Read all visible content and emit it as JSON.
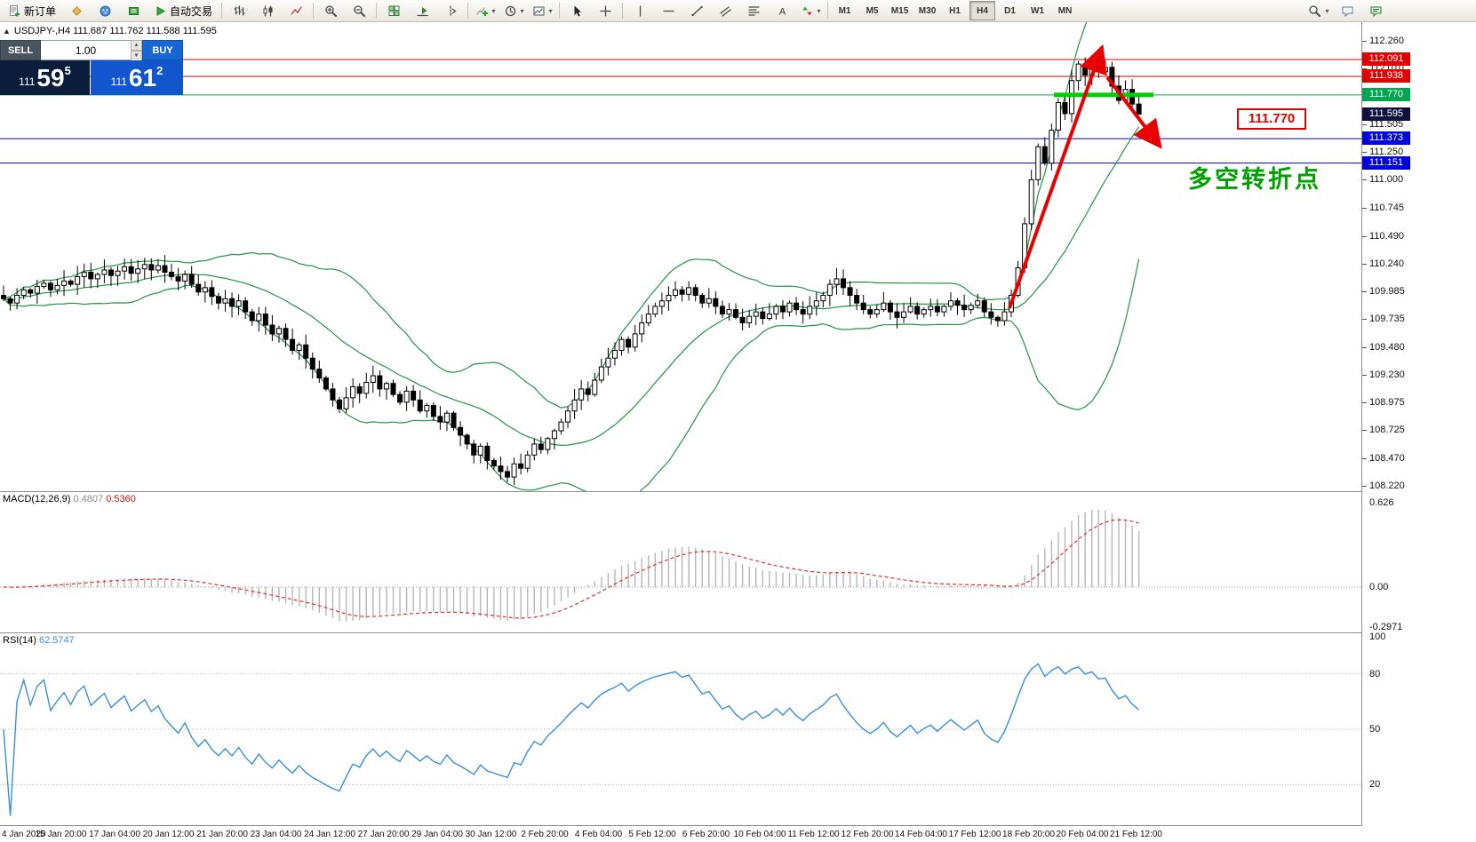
{
  "toolbar": {
    "new_order": "新订单",
    "autotrading": "自动交易",
    "timeframes": [
      "M1",
      "M5",
      "M15",
      "M30",
      "H1",
      "H4",
      "D1",
      "W1",
      "MN"
    ],
    "active_timeframe": "H4",
    "caret": "▾"
  },
  "trade_panel": {
    "sell_label": "SELL",
    "buy_label": "BUY",
    "volume": "1.00",
    "sell_price_prefix": "111",
    "sell_price_big": "59",
    "sell_price_sup": "5",
    "buy_price_prefix": "111",
    "buy_price_big": "61",
    "buy_price_sup": "2",
    "spin_up": "▲",
    "spin_down": "▼"
  },
  "chart_header": {
    "collapse_icon": "▲",
    "title": "USDJPY-,H4  111.687 111.762 111.588 111.595"
  },
  "chart_data": {
    "type": "candlestick",
    "symbol": "USDJPY-",
    "period": "H4",
    "ohlc": {
      "open": 111.687,
      "high": 111.762,
      "low": 111.588,
      "close": 111.595
    },
    "price_axis_range": [
      108.18,
      112.43
    ],
    "closes": [
      109.92,
      109.88,
      109.95,
      110.0,
      109.97,
      110.03,
      110.06,
      110.0,
      110.04,
      110.08,
      110.05,
      110.12,
      110.16,
      110.1,
      110.14,
      110.18,
      110.13,
      110.17,
      110.21,
      110.15,
      110.19,
      110.23,
      110.18,
      110.22,
      110.16,
      110.12,
      110.08,
      110.14,
      110.05,
      109.98,
      110.02,
      109.94,
      109.88,
      109.92,
      109.85,
      109.9,
      109.8,
      109.72,
      109.78,
      109.68,
      109.6,
      109.65,
      109.55,
      109.45,
      109.5,
      109.38,
      109.28,
      109.2,
      109.1,
      109.0,
      108.92,
      109.02,
      109.12,
      109.06,
      109.16,
      109.22,
      109.1,
      109.15,
      109.05,
      108.98,
      109.08,
      109.0,
      108.9,
      108.95,
      108.85,
      108.8,
      108.88,
      108.75,
      108.68,
      108.6,
      108.5,
      108.58,
      108.45,
      108.4,
      108.35,
      108.3,
      108.42,
      108.38,
      108.5,
      108.6,
      108.55,
      108.65,
      108.72,
      108.8,
      108.9,
      109.0,
      109.1,
      109.05,
      109.18,
      109.3,
      109.38,
      109.45,
      109.55,
      109.48,
      109.6,
      109.7,
      109.78,
      109.85,
      109.9,
      109.95,
      110.0,
      109.96,
      110.02,
      109.95,
      109.88,
      109.92,
      109.85,
      109.78,
      109.82,
      109.75,
      109.7,
      109.76,
      109.8,
      109.74,
      109.78,
      109.85,
      109.8,
      109.88,
      109.82,
      109.78,
      109.85,
      109.9,
      109.95,
      110.05,
      110.1,
      110.02,
      109.95,
      109.88,
      109.82,
      109.78,
      109.82,
      109.88,
      109.8,
      109.75,
      109.8,
      109.85,
      109.78,
      109.82,
      109.85,
      109.8,
      109.85,
      109.9,
      109.86,
      109.82,
      109.86,
      109.9,
      109.8,
      109.75,
      109.72,
      109.8,
      109.95,
      110.2,
      110.6,
      111.0,
      111.3,
      111.15,
      111.45,
      111.7,
      111.6,
      111.9,
      112.05,
      111.95,
      112.08,
      111.98,
      112.02,
      111.85,
      111.72,
      111.82,
      111.687,
      111.595
    ],
    "bollinger": {
      "period": 20,
      "deviation": 2,
      "color": "#259347"
    },
    "price_ticks": [
      "112.260",
      "112.010",
      "111.505",
      "111.250",
      "111.000",
      "110.745",
      "110.490",
      "110.240",
      "109.985",
      "109.735",
      "109.480",
      "109.230",
      "108.975",
      "108.725",
      "108.470",
      "108.220"
    ],
    "levels": [
      {
        "price": 112.091,
        "label": "112.091",
        "color": "#e00000"
      },
      {
        "price": 111.938,
        "label": "111.938",
        "color": "#e00000"
      },
      {
        "price": 111.77,
        "label": "111.770",
        "color": "#00a651"
      },
      {
        "price": 111.373,
        "label": "111.373",
        "color": "#0000dd"
      },
      {
        "price": 111.151,
        "label": "111.151",
        "color": "#0000dd"
      }
    ],
    "current_price": {
      "price": 111.595,
      "label": "111.595",
      "badge_color": "#11113f"
    },
    "time_labels": [
      "4 Jan 2020",
      "15 Jan 20:00",
      "17 Jan 04:00",
      "20 Jan 12:00",
      "21 Jan 20:00",
      "23 Jan 04:00",
      "24 Jan 12:00",
      "27 Jan 20:00",
      "29 Jan 04:00",
      "30 Jan 12:00",
      "2 Feb 20:00",
      "4 Feb 04:00",
      "5 Feb 12:00",
      "6 Feb 20:00",
      "10 Feb 04:00",
      "11 Feb 12:00",
      "12 Feb 20:00",
      "14 Feb 04:00",
      "17 Feb 12:00",
      "18 Feb 20:00",
      "20 Feb 04:00",
      "21 Feb 12:00"
    ],
    "macd": {
      "name": "MACD(12,26,9)",
      "value_main": "0.4807",
      "value_signal": "0.5360",
      "fast": 12,
      "slow": 26,
      "signal_period": 9,
      "hist_color": "#b6b6b6",
      "signal_color": "#e03030",
      "axis": [
        {
          "v": 0.626,
          "label": "0.626"
        },
        {
          "v": 0,
          "label": "0.00"
        },
        {
          "v": -0.2971,
          "label": "-0.2971"
        }
      ]
    },
    "rsi": {
      "name": "RSI(14)",
      "value": "62.5747",
      "period": 14,
      "color": "#3a8fd9",
      "levels": [
        80,
        50,
        20
      ],
      "axis": [
        {
          "v": 100,
          "label": "100"
        },
        {
          "v": 80,
          "label": "80"
        },
        {
          "v": 50,
          "label": "50"
        },
        {
          "v": 20,
          "label": "20"
        }
      ]
    },
    "annotations": {
      "price_tag": "111.770",
      "note": "多空转折点",
      "note_color": "#00a000",
      "tag_color": "#e00000",
      "highlight_color": "#00ce00",
      "arrow_color": "#e80000"
    }
  }
}
